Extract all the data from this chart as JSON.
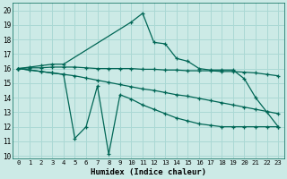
{
  "xlabel": "Humidex (Indice chaleur)",
  "background_color": "#cceae6",
  "grid_color": "#aad8d4",
  "line_color": "#006655",
  "x_ticks": [
    0,
    1,
    2,
    3,
    4,
    5,
    6,
    7,
    8,
    9,
    10,
    11,
    12,
    13,
    14,
    15,
    16,
    17,
    18,
    19,
    20,
    21,
    22,
    23
  ],
  "y_ticks": [
    10,
    11,
    12,
    13,
    14,
    15,
    16,
    17,
    18,
    19,
    20
  ],
  "ylim": [
    9.8,
    20.5
  ],
  "xlim": [
    -0.5,
    23.5
  ],
  "line_top": {
    "x": [
      0,
      1,
      2,
      3,
      4,
      10,
      11,
      12,
      13,
      14,
      15,
      16,
      17,
      18,
      19,
      20,
      21,
      22,
      23
    ],
    "y": [
      16.0,
      16.1,
      16.2,
      16.3,
      16.3,
      19.2,
      19.8,
      17.8,
      17.7,
      16.7,
      16.5,
      16.0,
      15.9,
      15.9,
      15.9,
      15.3,
      14.0,
      13.0,
      12.0
    ]
  },
  "line_flat1": {
    "x": [
      0,
      1,
      2,
      3,
      4,
      5,
      6,
      7,
      8,
      9,
      10,
      11,
      12,
      13,
      14,
      15,
      16,
      17,
      18,
      19,
      20,
      21,
      22,
      23
    ],
    "y": [
      16.0,
      16.05,
      16.05,
      16.1,
      16.1,
      16.1,
      16.05,
      16.0,
      16.0,
      16.0,
      16.0,
      15.95,
      15.95,
      15.9,
      15.9,
      15.85,
      15.85,
      15.85,
      15.8,
      15.8,
      15.75,
      15.7,
      15.6,
      15.5
    ]
  },
  "line_flat2": {
    "x": [
      0,
      1,
      2,
      3,
      4,
      5,
      6,
      7,
      8,
      9,
      10,
      11,
      12,
      13,
      14,
      15,
      16,
      17,
      18,
      19,
      20,
      21,
      22,
      23
    ],
    "y": [
      16.0,
      15.9,
      15.8,
      15.7,
      15.6,
      15.5,
      15.35,
      15.2,
      15.05,
      14.9,
      14.75,
      14.6,
      14.5,
      14.35,
      14.2,
      14.1,
      13.95,
      13.8,
      13.65,
      13.5,
      13.35,
      13.2,
      13.05,
      12.9
    ]
  },
  "line_wavy": {
    "x": [
      0,
      1,
      2,
      3,
      4,
      5,
      6,
      7,
      8,
      9,
      10,
      11,
      12,
      13,
      14,
      15,
      16,
      17,
      18,
      19,
      20,
      21,
      22,
      23
    ],
    "y": [
      16.0,
      15.9,
      15.8,
      15.7,
      15.6,
      11.2,
      12.0,
      14.8,
      10.1,
      14.2,
      13.9,
      13.5,
      13.2,
      12.9,
      12.6,
      12.4,
      12.2,
      12.1,
      12.0,
      12.0,
      12.0,
      12.0,
      12.0,
      12.0
    ]
  }
}
